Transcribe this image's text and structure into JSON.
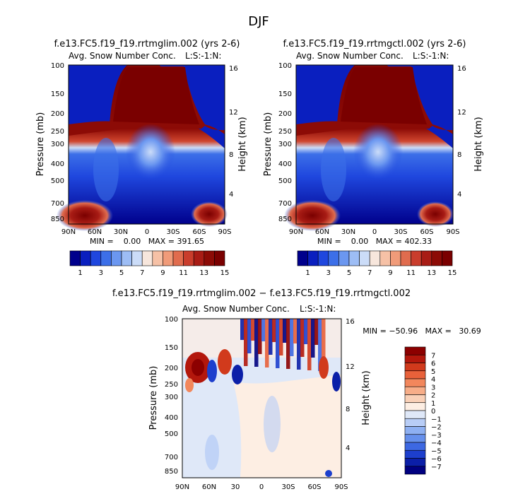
{
  "figure_title": "DJF",
  "chart_data": [
    {
      "type": "heatmap",
      "id": "p1",
      "title": "f.e13.FC5.f19_f19.rrtmglim.002 (yrs 2-6)",
      "subtitle": "Avg. Snow Number Conc.",
      "unit_label": "L:S:-1:N:",
      "ylabel": "Pressure (mb)",
      "ylabel_right": "Height (km)",
      "x_ticks": [
        "90N",
        "60N",
        "30N",
        "0",
        "30S",
        "60S",
        "90S"
      ],
      "y_ticks": [
        "100",
        "150",
        "200",
        "250",
        "300",
        "400",
        "500",
        "700",
        "850"
      ],
      "y_ticks_right": [
        "16",
        "12",
        "8",
        "4"
      ],
      "min_max": "MIN =    0.00   MAX = 391.65",
      "colorbar_labels": [
        "1",
        "3",
        "5",
        "7",
        "9",
        "11",
        "13",
        "15"
      ]
    },
    {
      "type": "heatmap",
      "id": "p2",
      "title": "f.e13.FC5.f19_f19.rrtmgctl.002 (yrs 2-6)",
      "subtitle": "Avg. Snow Number Conc.",
      "unit_label": "L:S:-1:N:",
      "ylabel": "Pressure (mb)",
      "ylabel_right": "Height (km)",
      "x_ticks": [
        "90N",
        "60N",
        "30N",
        "0",
        "30S",
        "60S",
        "90S"
      ],
      "y_ticks": [
        "100",
        "150",
        "200",
        "250",
        "300",
        "400",
        "500",
        "700",
        "850"
      ],
      "y_ticks_right": [
        "16",
        "12",
        "8",
        "4"
      ],
      "min_max": "MIN =    0.00   MAX = 402.33",
      "colorbar_labels": [
        "1",
        "3",
        "5",
        "7",
        "9",
        "11",
        "13",
        "15"
      ]
    },
    {
      "type": "heatmap",
      "id": "p3",
      "title": "f.e13.FC5.f19_f19.rrtmglim.002 − f.e13.FC5.f19_f19.rrtmgctl.002",
      "subtitle": "Avg. Snow Number Conc.",
      "unit_label": "L:S:-1:N:",
      "ylabel": "Pressure (mb)",
      "ylabel_right": "Height (km)",
      "x_ticks": [
        "90N",
        "60N",
        "30",
        "0",
        "30S",
        "60S",
        "90S"
      ],
      "y_ticks": [
        "100",
        "150",
        "200",
        "250",
        "300",
        "400",
        "500",
        "700",
        "850"
      ],
      "y_ticks_right": [
        "16",
        "12",
        "8",
        "4"
      ],
      "min_max": "MIN = −50.96   MAX =   30.69",
      "colorbar_labels": [
        "7",
        "6",
        "5",
        "4",
        "3",
        "2",
        "1",
        "0",
        "−1",
        "−2",
        "−3",
        "−4",
        "−5",
        "−6",
        "−7"
      ]
    }
  ],
  "colors": {
    "abs_scale": [
      "#00008c",
      "#0a1fbf",
      "#1f47de",
      "#3c6fe8",
      "#6b97f0",
      "#9dbdf5",
      "#cbdcf8",
      "#f7e6dc",
      "#f6c1a6",
      "#f09b79",
      "#e06c4e",
      "#c93d2c",
      "#a81c15",
      "#8c0b06",
      "#7a0000"
    ],
    "diff_scale": [
      "#8c0000",
      "#b3170c",
      "#d13a1c",
      "#e8613a",
      "#f2875c",
      "#f7ad88",
      "#f9d0b7",
      "#fdeee3",
      "#dfe8f8",
      "#b8cdf6",
      "#8eb0f2",
      "#6690ec",
      "#3d68e2",
      "#1d3fcd",
      "#0b1fa8",
      "#000080"
    ]
  }
}
